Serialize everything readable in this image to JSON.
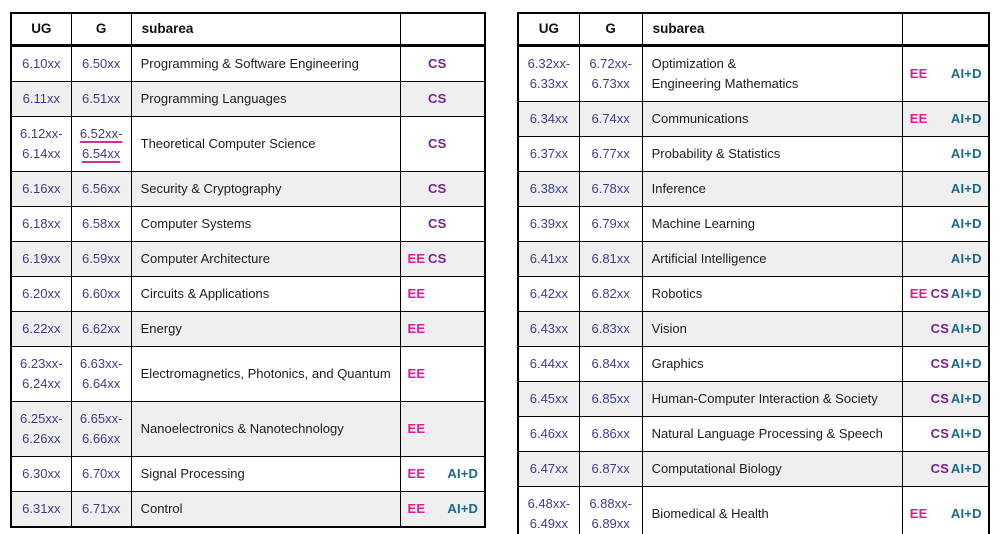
{
  "colors": {
    "course_number": "#3c3c8f",
    "ee": "#e11a97",
    "cs": "#7a2190",
    "aid": "#17678f",
    "link_underline": "#ce2f9c",
    "stripe": "#efefef",
    "border": "#000000",
    "text": "#1c1c1c",
    "header_text": "#111111"
  },
  "tag_slots": [
    "EE",
    "CS",
    "AI+D"
  ],
  "tables": [
    {
      "id": "left",
      "headers": {
        "ug": "UG",
        "g": "G",
        "subarea": "subarea",
        "tags": ""
      },
      "rows": [
        {
          "ug": "6.10xx",
          "g": "6.50xx",
          "subarea": "Programming & Software Engineering",
          "tags": [
            "CS"
          ]
        },
        {
          "ug": "6.11xx",
          "g": "6.51xx",
          "subarea": "Programming Languages",
          "tags": [
            "CS"
          ]
        },
        {
          "ug": [
            "6.12xx-",
            "6.14xx"
          ],
          "g": [
            "6.52xx-",
            "6.54xx"
          ],
          "g_underlined": true,
          "subarea": "Theoretical Computer Science",
          "tags": [
            "CS"
          ]
        },
        {
          "ug": "6.16xx",
          "g": "6.56xx",
          "subarea": "Security & Cryptography",
          "tags": [
            "CS"
          ]
        },
        {
          "ug": "6.18xx",
          "g": "6.58xx",
          "subarea": "Computer Systems",
          "tags": [
            "CS"
          ]
        },
        {
          "ug": "6.19xx",
          "g": "6.59xx",
          "subarea": "Computer Architecture",
          "tags": [
            "EE",
            "CS"
          ]
        },
        {
          "ug": "6.20xx",
          "g": "6.60xx",
          "subarea": "Circuits & Applications",
          "tags": [
            "EE"
          ]
        },
        {
          "ug": "6.22xx",
          "g": "6.62xx",
          "subarea": "Energy",
          "tags": [
            "EE"
          ]
        },
        {
          "ug": [
            "6.23xx-",
            "6.24xx"
          ],
          "g": [
            "6.63xx-",
            "6.64xx"
          ],
          "subarea": "Electromagnetics, Photonics, and Quantum",
          "tags": [
            "EE"
          ]
        },
        {
          "ug": [
            "6.25xx-",
            "6.26xx"
          ],
          "g": [
            "6.65xx-",
            "6.66xx"
          ],
          "subarea": "Nanoelectronics & Nanotechnology",
          "tags": [
            "EE"
          ]
        },
        {
          "ug": "6.30xx",
          "g": "6.70xx",
          "subarea": "Signal Processing",
          "tags": [
            "EE",
            "AI+D"
          ]
        },
        {
          "ug": "6.31xx",
          "g": "6.71xx",
          "subarea": "Control",
          "tags": [
            "EE",
            "AI+D"
          ]
        }
      ]
    },
    {
      "id": "right",
      "headers": {
        "ug": "UG",
        "g": "G",
        "subarea": "subarea",
        "tags": ""
      },
      "rows": [
        {
          "ug": [
            "6.32xx-",
            "6.33xx"
          ],
          "g": [
            "6.72xx-",
            "6.73xx"
          ],
          "subarea": [
            "Optimization &",
            "Engineering Mathematics"
          ],
          "tags": [
            "EE",
            "AI+D"
          ]
        },
        {
          "ug": "6.34xx",
          "g": "6.74xx",
          "subarea": "Communications",
          "tags": [
            "EE",
            "AI+D"
          ]
        },
        {
          "ug": "6.37xx",
          "g": "6.77xx",
          "subarea": "Probability & Statistics",
          "tags": [
            "AI+D"
          ]
        },
        {
          "ug": "6.38xx",
          "g": "6.78xx",
          "subarea": "Inference",
          "tags": [
            "AI+D"
          ]
        },
        {
          "ug": "6.39xx",
          "g": "6.79xx",
          "subarea": "Machine Learning",
          "tags": [
            "AI+D"
          ]
        },
        {
          "ug": "6.41xx",
          "g": "6.81xx",
          "subarea": "Artificial Intelligence",
          "tags": [
            "AI+D"
          ]
        },
        {
          "ug": "6.42xx",
          "g": "6.82xx",
          "subarea": "Robotics",
          "tags": [
            "EE",
            "CS",
            "AI+D"
          ]
        },
        {
          "ug": "6.43xx",
          "g": "6.83xx",
          "subarea": "Vision",
          "tags": [
            "CS",
            "AI+D"
          ]
        },
        {
          "ug": "6.44xx",
          "g": "6.84xx",
          "subarea": "Graphics",
          "tags": [
            "CS",
            "AI+D"
          ]
        },
        {
          "ug": "6.45xx",
          "g": "6.85xx",
          "subarea": "Human-Computer Interaction & Society",
          "tags": [
            "CS",
            "AI+D"
          ]
        },
        {
          "ug": "6.46xx",
          "g": "6.86xx",
          "subarea": "Natural Language Processing & Speech",
          "tags": [
            "CS",
            "AI+D"
          ]
        },
        {
          "ug": "6.47xx",
          "g": "6.87xx",
          "subarea": "Computational Biology",
          "tags": [
            "CS",
            "AI+D"
          ]
        },
        {
          "ug": [
            "6.48xx-",
            "6.49xx"
          ],
          "g": [
            "6.88xx-",
            "6.89xx"
          ],
          "subarea": "Biomedical & Health",
          "tags": [
            "EE",
            "AI+D"
          ]
        }
      ]
    }
  ]
}
